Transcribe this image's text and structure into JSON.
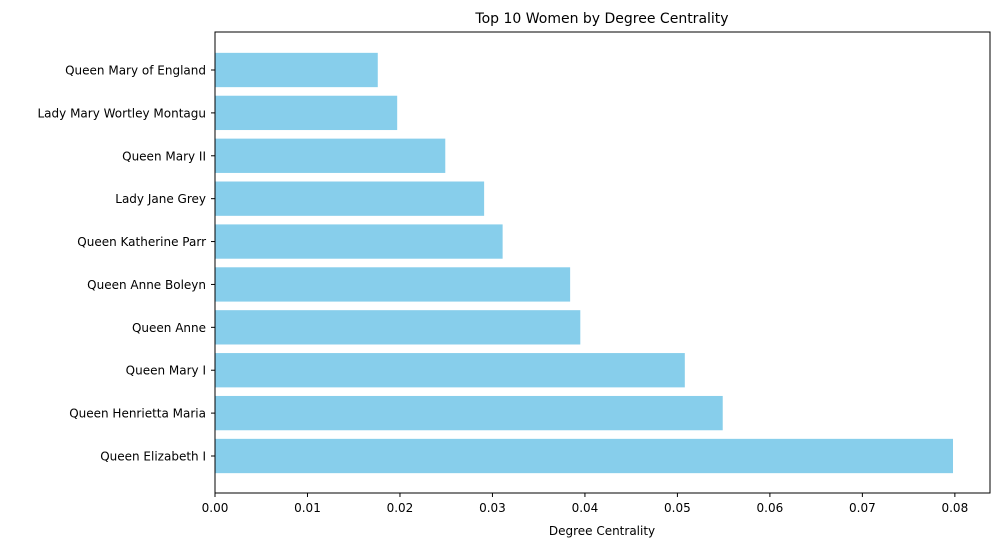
{
  "chart_data": {
    "type": "bar",
    "orientation": "horizontal",
    "title": "Top 10 Women by Degree Centrality",
    "xlabel": "Degree Centrality",
    "ylabel": "",
    "categories": [
      "Queen Mary of England",
      "Lady Mary Wortley Montagu",
      "Queen Mary II",
      "Lady Jane Grey",
      "Queen Katherine Parr",
      "Queen Anne Boleyn",
      "Queen Anne",
      "Queen Mary I",
      "Queen Henrietta Maria",
      "Queen Elizabeth I"
    ],
    "values": [
      0.0176,
      0.0197,
      0.0249,
      0.0291,
      0.0311,
      0.0384,
      0.0395,
      0.0508,
      0.0549,
      0.0798
    ],
    "xlim": [
      0,
      0.0838
    ],
    "xticks": [
      "0.00",
      "0.01",
      "0.02",
      "0.03",
      "0.04",
      "0.05",
      "0.06",
      "0.07",
      "0.08"
    ],
    "grid": false,
    "bar_color": "#87ceeb"
  }
}
